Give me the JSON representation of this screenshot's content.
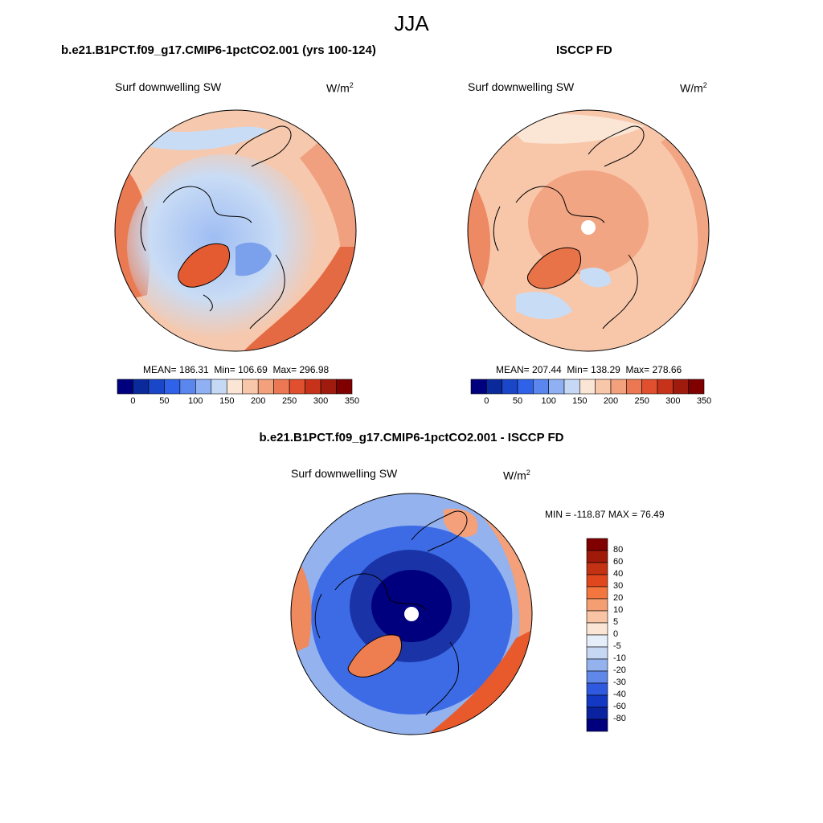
{
  "figure": {
    "title": "JJA"
  },
  "panels": {
    "model": {
      "title": "b.e21.B1PCT.f09_g17.CMIP6-1pctCO2.001 (yrs 100-124)",
      "variable": "Surf downwelling SW",
      "units_base": "W/m",
      "units_exp": "2",
      "stats": {
        "mean_label": "MEAN=",
        "mean": "186.31",
        "min_label": "Min=",
        "min": "106.69",
        "max_label": "Max=",
        "max": "296.98"
      },
      "colorbar_ticks": [
        "0",
        "50",
        "100",
        "150",
        "200",
        "250",
        "300",
        "350"
      ]
    },
    "obs": {
      "title": "ISCCP FD",
      "variable": "Surf downwelling SW",
      "units_base": "W/m",
      "units_exp": "2",
      "stats": {
        "mean_label": "MEAN=",
        "mean": "207.44",
        "min_label": "Min=",
        "min": "138.29",
        "max_label": "Max=",
        "max": "278.66"
      },
      "colorbar_ticks": [
        "0",
        "50",
        "100",
        "150",
        "200",
        "250",
        "300",
        "350"
      ]
    },
    "diff": {
      "title": "b.e21.B1PCT.f09_g17.CMIP6-1pctCO2.001 - ISCCP FD",
      "variable": "Surf downwelling SW",
      "units": "W/m",
      "units_exp": "2",
      "stats_text": "MIN = -118.87 MAX =  76.49",
      "colorbar_ticks": [
        "80",
        "60",
        "40",
        "30",
        "20",
        "10",
        "5",
        "0",
        "-5",
        "-10",
        "-20",
        "-30",
        "-40",
        "-60",
        "-80"
      ]
    }
  },
  "colors": {
    "abs_scale": [
      "#00007f",
      "#0a2a9c",
      "#1a46c8",
      "#2f62e8",
      "#5a86ee",
      "#8fb0f2",
      "#c5d9f5",
      "#fbe6d6",
      "#f8c6a8",
      "#f3a07c",
      "#ec7753",
      "#e04f2e",
      "#c7331a",
      "#9e1b0e",
      "#800000"
    ],
    "diff_scale": [
      "#800000",
      "#a01a0a",
      "#c23213",
      "#e0471d",
      "#f3763f",
      "#f59e72",
      "#f8c4a4",
      "#fbe6d6",
      "#e6eefa",
      "#c5d7f3",
      "#93b2ee",
      "#6088e8",
      "#2f5ae0",
      "#1238c4",
      "#0a22a0",
      "#00007f"
    ]
  }
}
